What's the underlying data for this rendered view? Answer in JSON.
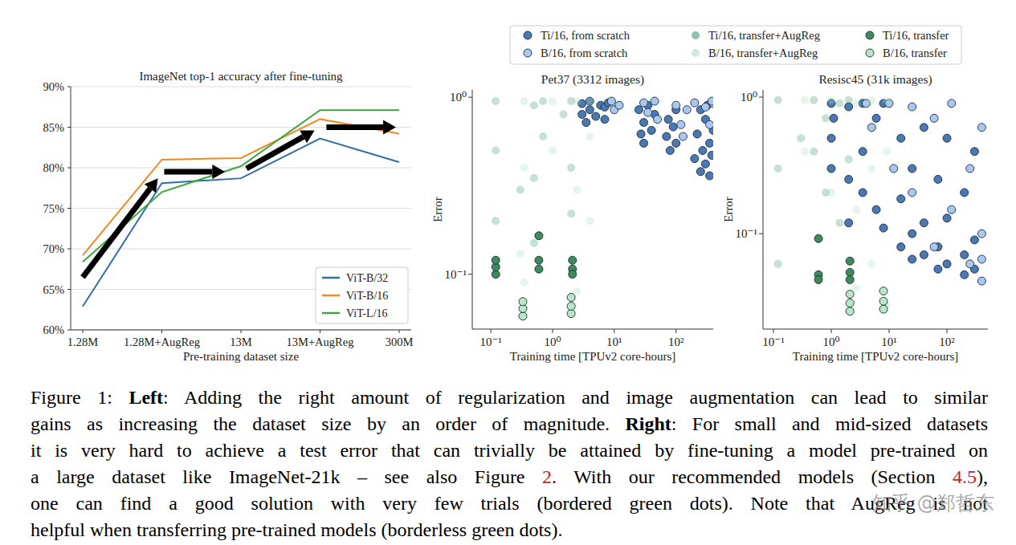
{
  "chart_data": [
    {
      "type": "line",
      "title": "ImageNet top-1 accuracy after fine-tuning",
      "x_label": "Pre-training dataset size",
      "categories": [
        "1.28M",
        "1.28M+AugReg",
        "13M",
        "13M+AugReg",
        "300M"
      ],
      "ylim": [
        60,
        90
      ],
      "yticks": [
        {
          "value": 60,
          "label": "60%"
        },
        {
          "value": 65,
          "label": "65%"
        },
        {
          "value": 70,
          "label": "70%"
        },
        {
          "value": 75,
          "label": "75%"
        },
        {
          "value": 80,
          "label": "80%"
        },
        {
          "value": 85,
          "label": "85%"
        },
        {
          "value": 90,
          "label": "90%"
        }
      ],
      "grid": true,
      "legend": "lower right",
      "series": [
        {
          "name": "ViT-B/32",
          "color": "#2f6fa7",
          "values": [
            62.9,
            78.1,
            78.7,
            83.6,
            80.7
          ]
        },
        {
          "name": "ViT-B/16",
          "color": "#f08a24",
          "values": [
            69.2,
            81.0,
            81.2,
            86.0,
            84.2
          ]
        },
        {
          "name": "ViT-L/16",
          "color": "#3ba83b",
          "values": [
            68.4,
            77.0,
            80.2,
            87.1,
            87.1
          ]
        }
      ],
      "arrows": [
        {
          "from": [
            0,
            66.5
          ],
          "to": [
            0.95,
            78.7
          ]
        },
        {
          "from": [
            1.03,
            79.5
          ],
          "to": [
            1.8,
            79.5
          ]
        },
        {
          "from": [
            2.07,
            79.9
          ],
          "to": [
            2.93,
            84.6
          ]
        },
        {
          "from": [
            3.08,
            85.0
          ],
          "to": [
            3.96,
            85.0
          ]
        }
      ]
    },
    {
      "type": "scatter",
      "title": "Pet37 (3312 images)",
      "x_label": "Training time [TPUv2 core-hours]",
      "y_label": "Error",
      "log": true,
      "xlim": [
        0.05,
        400
      ],
      "ylim": [
        0.049,
        1.1
      ],
      "xticks": [
        {
          "value": 0.1,
          "label": "10⁻¹"
        },
        {
          "value": 1,
          "label": "10⁰"
        },
        {
          "value": 10,
          "label": "10¹"
        },
        {
          "value": 100,
          "label": "10²"
        }
      ],
      "yticks": [
        {
          "value": 0.1,
          "label": "10⁻¹"
        },
        {
          "value": 1,
          "label": "10⁰"
        }
      ],
      "legend": "upper center",
      "series": [
        {
          "name": "Ti/16, from scratch",
          "color": "#4a78b5",
          "marker": "bordered",
          "x": [
            3,
            3,
            3.5,
            4,
            4,
            5,
            6,
            7,
            7,
            8,
            25,
            27,
            30,
            30,
            35,
            40,
            45,
            70,
            75,
            80,
            90,
            100,
            100,
            200,
            220,
            250,
            270,
            300,
            300,
            350,
            380,
            400,
            320,
            250,
            350
          ],
          "values": [
            0.92,
            0.8,
            0.72,
            0.95,
            0.85,
            0.78,
            0.9,
            0.88,
            0.75,
            0.93,
            0.85,
            0.62,
            0.55,
            0.72,
            0.9,
            0.65,
            0.8,
            0.6,
            0.75,
            0.5,
            0.68,
            0.85,
            0.55,
            0.45,
            0.62,
            0.38,
            0.5,
            0.42,
            0.75,
            0.55,
            0.47,
            0.65,
            0.9,
            0.85,
            0.36
          ]
        },
        {
          "name": "B/16, from scratch",
          "color": "#a9c8f0",
          "marker": "bordered",
          "x": [
            9,
            10,
            12,
            30,
            35,
            45,
            50,
            100,
            120,
            130,
            150,
            300,
            350,
            400,
            380,
            200
          ],
          "values": [
            0.95,
            0.85,
            0.9,
            0.93,
            0.82,
            0.95,
            0.75,
            0.9,
            0.7,
            0.6,
            0.85,
            0.88,
            0.7,
            0.92,
            0.95,
            0.93
          ]
        },
        {
          "name": "Ti/16, transfer+AugReg",
          "color": "#3d9c72",
          "marker": "plain",
          "x": [
            0.12,
            0.12,
            0.12,
            0.5,
            0.5,
            0.5,
            0.7,
            0.7,
            2,
            2,
            2,
            1.5,
            0.3
          ],
          "values": [
            0.95,
            0.5,
            0.2,
            0.9,
            0.35,
            0.15,
            0.95,
            0.6,
            0.95,
            0.4,
            0.22,
            0.8,
            0.3
          ]
        },
        {
          "name": "B/16, transfer+AugReg",
          "color": "#a7e0be",
          "marker": "plain",
          "x": [
            0.35,
            0.35,
            0.35,
            0.35,
            1,
            1,
            2.5,
            2.5,
            2.5,
            4,
            4,
            4,
            0.3
          ],
          "values": [
            0.95,
            0.4,
            0.09,
            0.065,
            0.95,
            0.5,
            0.95,
            0.3,
            0.08,
            0.95,
            0.6,
            0.2,
            0.13
          ]
        },
        {
          "name": "Ti/16, transfer",
          "color": "#3e8a5c",
          "marker": "bordered",
          "x": [
            0.12,
            0.12,
            0.12,
            0.6,
            0.6,
            0.6,
            2.1,
            2.1,
            2.1
          ],
          "values": [
            0.1,
            0.11,
            0.12,
            0.165,
            0.12,
            0.107,
            0.12,
            0.107,
            0.1
          ]
        },
        {
          "name": "B/16, transfer",
          "color": "#b8e6c8",
          "marker": "bordered",
          "x": [
            0.33,
            0.33,
            0.33,
            2,
            2,
            2
          ],
          "values": [
            0.058,
            0.064,
            0.07,
            0.06,
            0.066,
            0.074
          ]
        }
      ]
    },
    {
      "type": "scatter",
      "title": "Resisc45 (31k images)",
      "x_label": "Training time [TPUv2 core-hours]",
      "y_label": "Error",
      "log": true,
      "xlim": [
        0.066,
        510
      ],
      "ylim": [
        0.02,
        1.13
      ],
      "xticks": [
        {
          "value": 0.1,
          "label": "10⁻¹"
        },
        {
          "value": 1,
          "label": "10⁰"
        },
        {
          "value": 10,
          "label": "10¹"
        },
        {
          "value": 100,
          "label": "10²"
        }
      ],
      "yticks": [
        {
          "value": 0.1,
          "label": "10⁻¹"
        },
        {
          "value": 1,
          "label": "10⁰"
        }
      ],
      "series": [
        {
          "name": "Ti/16, from scratch",
          "color": "#4a78b5",
          "marker": "bordered",
          "x": [
            1,
            1,
            1,
            1.1,
            2,
            2,
            2,
            3.5,
            3.5,
            3.5,
            6,
            6,
            8,
            8,
            16,
            16,
            16,
            25,
            25,
            25,
            40,
            40,
            40,
            70,
            70,
            70,
            100,
            100,
            100,
            200,
            200,
            200,
            300,
            300,
            300
          ],
          "values": [
            0.9,
            0.5,
            0.3,
            0.7,
            0.85,
            0.25,
            0.12,
            0.9,
            0.4,
            0.2,
            0.7,
            0.15,
            0.9,
            0.11,
            0.5,
            0.18,
            0.08,
            0.3,
            0.1,
            0.065,
            0.6,
            0.12,
            0.07,
            0.25,
            0.08,
            0.055,
            0.5,
            0.13,
            0.06,
            0.2,
            0.07,
            0.05,
            0.4,
            0.09,
            0.055
          ]
        },
        {
          "name": "B/16, from scratch",
          "color": "#a9c8f0",
          "marker": "bordered",
          "x": [
            4,
            5,
            10,
            12,
            25,
            25,
            60,
            60,
            120,
            120,
            250,
            250,
            400,
            400,
            400,
            400
          ],
          "values": [
            0.9,
            0.6,
            0.9,
            0.3,
            0.85,
            0.2,
            0.7,
            0.08,
            0.9,
            0.15,
            0.3,
            0.06,
            0.6,
            0.1,
            0.045,
            0.065
          ]
        },
        {
          "name": "Ti/16, transfer+AugReg",
          "color": "#3d9c72",
          "marker": "plain",
          "x": [
            0.12,
            0.12,
            0.12,
            0.5,
            0.5,
            0.8,
            0.8,
            1.4,
            1.4,
            2,
            2,
            0.3
          ],
          "values": [
            0.95,
            0.3,
            0.06,
            0.95,
            0.4,
            0.7,
            0.2,
            0.9,
            0.12,
            0.95,
            0.35,
            0.5
          ]
        },
        {
          "name": "B/16, transfer+AugReg",
          "color": "#a7e0be",
          "marker": "plain",
          "x": [
            0.35,
            0.35,
            1,
            1,
            2.7,
            2.7,
            2.7,
            5,
            5,
            5,
            9,
            9,
            9
          ],
          "values": [
            0.95,
            0.4,
            0.95,
            0.2,
            0.9,
            0.15,
            0.04,
            0.95,
            0.3,
            0.06,
            0.95,
            0.4,
            0.03
          ]
        },
        {
          "name": "Ti/16, transfer",
          "color": "#3e8a5c",
          "marker": "bordered",
          "x": [
            0.6,
            0.6,
            0.6,
            2.1,
            2.1,
            2.1
          ],
          "values": [
            0.092,
            0.05,
            0.046,
            0.063,
            0.052,
            0.046
          ]
        },
        {
          "name": "B/16, transfer",
          "color": "#b8e6c8",
          "marker": "bordered",
          "x": [
            2.1,
            2.1,
            2.1,
            8,
            8,
            8
          ],
          "values": [
            0.027,
            0.031,
            0.036,
            0.028,
            0.032,
            0.038
          ]
        }
      ]
    }
  ],
  "caption": {
    "lines": [
      [
        {
          "text": "Figure 1: "
        },
        {
          "text": "Left",
          "style": "bold"
        },
        {
          "text": ": Adding the right amount of regularization and image augmentation can lead to similar"
        }
      ],
      [
        {
          "text": "gains as increasing the dataset size by an order of magnitude. "
        },
        {
          "text": "Right",
          "style": "bold"
        },
        {
          "text": ": For small and mid-sized datasets"
        }
      ],
      [
        {
          "text": "it is very hard to achieve a test error that can trivially be attained by fine-tuning a model pre-trained on"
        }
      ],
      [
        {
          "text": "a large dataset like ImageNet-21k – see also Figure "
        },
        {
          "text": "2",
          "style": "link"
        },
        {
          "text": ". With our recommended models (Section "
        },
        {
          "text": "4.5",
          "style": "link"
        },
        {
          "text": "),"
        }
      ],
      [
        {
          "text": "one can find a good solution with very few trials (bordered green dots). Note that AugReg is not"
        }
      ],
      [
        {
          "text": "helpful when transferring pre-trained models (borderless green dots)."
        }
      ]
    ]
  },
  "watermark": "知乎 @郑哲东"
}
